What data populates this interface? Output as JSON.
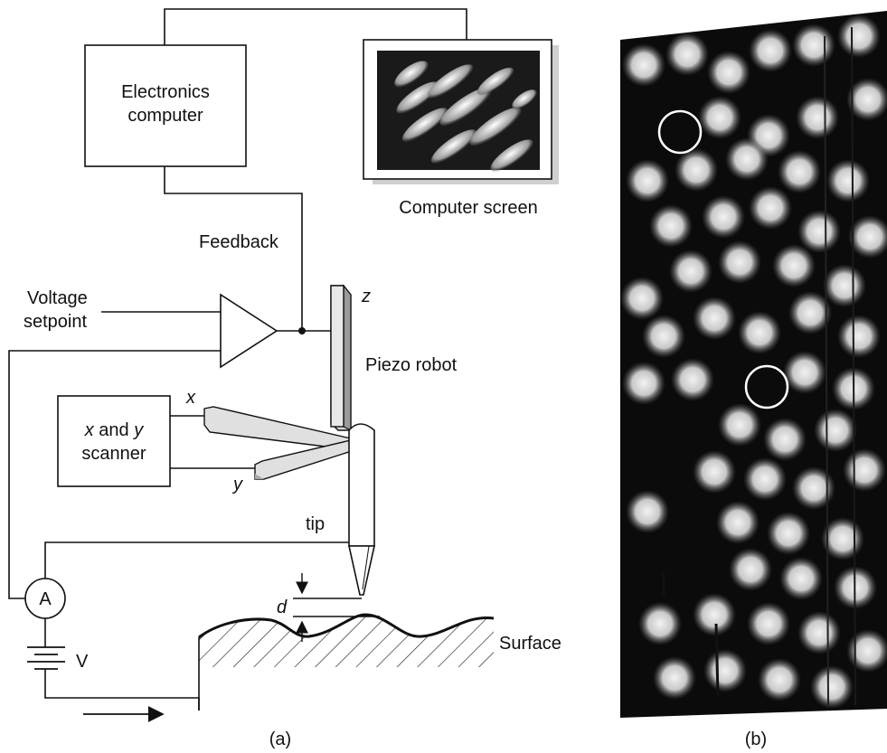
{
  "panel_a": {
    "caption": "(a)",
    "electronics_line1": "Electronics",
    "electronics_line2": "computer",
    "screen_label": "Computer screen",
    "feedback": "Feedback",
    "voltage_line1": "Voltage",
    "voltage_line2": "setpoint",
    "z_label": "z",
    "piezo_label": "Piezo robot",
    "x_label": "x",
    "y_label": "y",
    "scanner_line1_italic": "x",
    "scanner_line1_rest": " and ",
    "scanner_line1_italic2": "y",
    "scanner_line2": "scanner",
    "tip_label": "tip",
    "ammeter": "A",
    "voltage_source": "V",
    "d_label": "d",
    "surface_label": "Surface"
  },
  "panel_b": {
    "caption": "(b)"
  }
}
